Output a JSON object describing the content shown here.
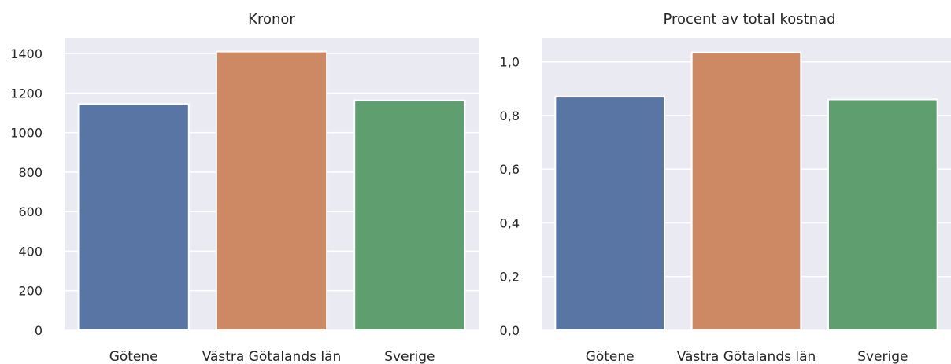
{
  "chart_data": [
    {
      "type": "bar",
      "title": "Kronor",
      "categories": [
        "Götene",
        "Västra Götalands län",
        "Sverige"
      ],
      "values": [
        1145,
        1410,
        1163
      ],
      "ylim": [
        0,
        1480
      ],
      "yticks": [
        0,
        200,
        400,
        600,
        800,
        1000,
        1200,
        1400
      ],
      "ytick_labels": [
        "0",
        "200",
        "400",
        "600",
        "800",
        "1000",
        "1200",
        "1400"
      ],
      "grid": true,
      "colors": [
        "#5875a4",
        "#cc8963",
        "#5f9e6e"
      ]
    },
    {
      "type": "bar",
      "title": "Procent av total kostnad",
      "categories": [
        "Götene",
        "Västra Götalands län",
        "Sverige"
      ],
      "values": [
        0.87,
        1.035,
        0.86
      ],
      "ylim": [
        0,
        1.09
      ],
      "yticks": [
        0,
        0.2,
        0.4,
        0.6,
        0.8,
        1.0
      ],
      "ytick_labels": [
        "0,0",
        "0,2",
        "0,4",
        "0,6",
        "0,8",
        "1,0"
      ],
      "grid": true,
      "colors": [
        "#5875a4",
        "#cc8963",
        "#5f9e6e"
      ]
    }
  ]
}
